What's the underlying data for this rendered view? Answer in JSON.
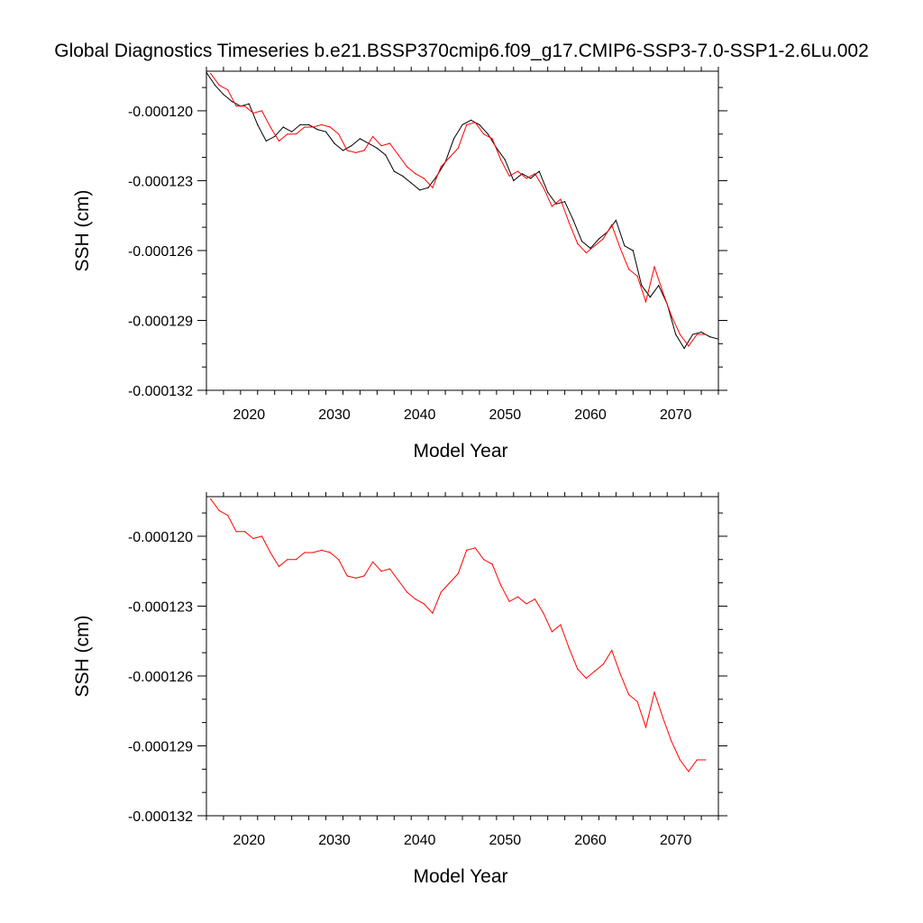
{
  "title": "Global Diagnostics Timeseries b.e21.BSSP370cmip6.f09_g17.CMIP6-SSP3-7.0-SSP1-2.6Lu.002",
  "colors": {
    "monthly": "#000000",
    "annual": "#ff0000",
    "axes": "#000000",
    "background": "#ffffff"
  },
  "chart_data": [
    {
      "type": "line",
      "title": "",
      "xlabel": "Model Year",
      "ylabel": "SSH (cm)",
      "xlim": [
        2015,
        2075
      ],
      "ylim": [
        -0.000132,
        -0.0001183
      ],
      "x_ticks": [
        2020,
        2030,
        2040,
        2050,
        2060,
        2070
      ],
      "x_tick_labels": [
        "2020",
        "2030",
        "2040",
        "2050",
        "2060",
        "2070"
      ],
      "y_ticks": [
        -0.000132,
        -0.000129,
        -0.000126,
        -0.000123,
        -0.00012
      ],
      "y_tick_labels": [
        "-0.000132",
        "-0.000129",
        "-0.000126",
        "-0.000123",
        "-0.000120"
      ],
      "grid": false,
      "legend": "none",
      "series": [
        {
          "style": "monthly (black)",
          "x": [
            2015.0,
            2016.0,
            2017.0,
            2018.0,
            2019.0,
            2020.0,
            2021.0,
            2022.0,
            2023.0,
            2024.0,
            2025.0,
            2026.0,
            2027.0,
            2028.0,
            2029.0,
            2030.0,
            2031.0,
            2032.0,
            2033.0,
            2034.0,
            2035.0,
            2036.0,
            2037.0,
            2038.0,
            2039.0,
            2040.0,
            2041.0,
            2042.0,
            2043.0,
            2044.0,
            2045.0,
            2046.0,
            2047.0,
            2048.0,
            2049.0,
            2050.0,
            2051.0,
            2052.0,
            2053.0,
            2054.0,
            2055.0,
            2056.0,
            2057.0,
            2058.0,
            2059.0,
            2060.0,
            2061.0,
            2062.0,
            2063.0,
            2064.0,
            2065.0,
            2066.0,
            2067.0,
            2068.0,
            2069.0,
            2070.0,
            2071.0,
            2072.0,
            2073.0,
            2074.0,
            2075.0
          ],
          "values": [
            -0.00011835,
            -0.0001189,
            -0.0001193,
            -0.0001196,
            -0.0001198,
            -0.0001197,
            -0.0001206,
            -0.0001213,
            -0.0001211,
            -0.0001207,
            -0.0001209,
            -0.0001206,
            -0.0001206,
            -0.0001208,
            -0.0001209,
            -0.0001214,
            -0.0001217,
            -0.0001215,
            -0.0001212,
            -0.0001214,
            -0.0001216,
            -0.0001219,
            -0.0001226,
            -0.0001228,
            -0.0001231,
            -0.0001234,
            -0.0001233,
            -0.0001228,
            -0.0001222,
            -0.0001212,
            -0.0001206,
            -0.0001204,
            -0.0001206,
            -0.000121,
            -0.0001216,
            -0.0001221,
            -0.000123,
            -0.0001227,
            -0.0001229,
            -0.0001226,
            -0.0001235,
            -0.000124,
            -0.0001239,
            -0.0001247,
            -0.0001256,
            -0.0001259,
            -0.0001255,
            -0.0001252,
            -0.0001247,
            -0.0001258,
            -0.000126,
            -0.0001275,
            -0.000128,
            -0.0001275,
            -0.0001283,
            -0.0001296,
            -0.0001302,
            -0.0001296,
            -0.0001295,
            -0.0001297,
            -0.0001298
          ]
        },
        {
          "style": "annual mean (red)",
          "x": [
            2015.5,
            2016.5,
            2017.5,
            2018.5,
            2019.5,
            2020.5,
            2021.5,
            2022.5,
            2023.5,
            2024.5,
            2025.5,
            2026.5,
            2027.5,
            2028.5,
            2029.5,
            2030.5,
            2031.5,
            2032.5,
            2033.5,
            2034.5,
            2035.5,
            2036.5,
            2037.5,
            2038.5,
            2039.5,
            2040.5,
            2041.5,
            2042.5,
            2043.5,
            2044.5,
            2045.5,
            2046.5,
            2047.5,
            2048.5,
            2049.5,
            2050.5,
            2051.5,
            2052.5,
            2053.5,
            2054.5,
            2055.5,
            2056.5,
            2057.5,
            2058.5,
            2059.5,
            2060.5,
            2061.5,
            2062.5,
            2063.5,
            2064.5,
            2065.5,
            2066.5,
            2067.5,
            2068.5,
            2069.5,
            2070.5,
            2071.5,
            2072.5,
            2073.5
          ],
          "values": [
            -0.0001184,
            -0.0001189,
            -0.0001191,
            -0.0001198,
            -0.0001198,
            -0.0001201,
            -0.00012,
            -0.0001207,
            -0.0001213,
            -0.000121,
            -0.000121,
            -0.0001207,
            -0.0001207,
            -0.0001206,
            -0.0001207,
            -0.000121,
            -0.0001217,
            -0.0001218,
            -0.0001217,
            -0.0001211,
            -0.0001215,
            -0.0001214,
            -0.0001219,
            -0.0001224,
            -0.0001227,
            -0.0001229,
            -0.0001233,
            -0.0001224,
            -0.000122,
            -0.0001216,
            -0.0001206,
            -0.0001205,
            -0.000121,
            -0.0001212,
            -0.0001221,
            -0.0001228,
            -0.0001226,
            -0.0001229,
            -0.0001227,
            -0.0001233,
            -0.0001241,
            -0.0001238,
            -0.0001248,
            -0.0001257,
            -0.0001261,
            -0.0001258,
            -0.0001255,
            -0.0001249,
            -0.0001259,
            -0.0001268,
            -0.0001271,
            -0.0001282,
            -0.0001267,
            -0.0001278,
            -0.0001288,
            -0.0001296,
            -0.0001301,
            -0.0001296,
            -0.0001296
          ]
        }
      ]
    },
    {
      "type": "line",
      "title": "",
      "xlabel": "Model Year",
      "ylabel": "SSH (cm)",
      "xlim": [
        2015,
        2075
      ],
      "ylim": [
        -0.000132,
        -0.0001183
      ],
      "x_ticks": [
        2020,
        2030,
        2040,
        2050,
        2060,
        2070
      ],
      "x_tick_labels": [
        "2020",
        "2030",
        "2040",
        "2050",
        "2060",
        "2070"
      ],
      "y_ticks": [
        -0.000132,
        -0.000129,
        -0.000126,
        -0.000123,
        -0.00012
      ],
      "y_tick_labels": [
        "-0.000132",
        "-0.000129",
        "-0.000126",
        "-0.000123",
        "-0.000120"
      ],
      "grid": false,
      "legend": "none",
      "series": [
        {
          "style": "annual mean (red)",
          "x": [
            2015.5,
            2016.5,
            2017.5,
            2018.5,
            2019.5,
            2020.5,
            2021.5,
            2022.5,
            2023.5,
            2024.5,
            2025.5,
            2026.5,
            2027.5,
            2028.5,
            2029.5,
            2030.5,
            2031.5,
            2032.5,
            2033.5,
            2034.5,
            2035.5,
            2036.5,
            2037.5,
            2038.5,
            2039.5,
            2040.5,
            2041.5,
            2042.5,
            2043.5,
            2044.5,
            2045.5,
            2046.5,
            2047.5,
            2048.5,
            2049.5,
            2050.5,
            2051.5,
            2052.5,
            2053.5,
            2054.5,
            2055.5,
            2056.5,
            2057.5,
            2058.5,
            2059.5,
            2060.5,
            2061.5,
            2062.5,
            2063.5,
            2064.5,
            2065.5,
            2066.5,
            2067.5,
            2068.5,
            2069.5,
            2070.5,
            2071.5,
            2072.5,
            2073.5
          ],
          "values": [
            -0.0001184,
            -0.0001189,
            -0.0001191,
            -0.0001198,
            -0.0001198,
            -0.0001201,
            -0.00012,
            -0.0001207,
            -0.0001213,
            -0.000121,
            -0.000121,
            -0.0001207,
            -0.0001207,
            -0.0001206,
            -0.0001207,
            -0.000121,
            -0.0001217,
            -0.0001218,
            -0.0001217,
            -0.0001211,
            -0.0001215,
            -0.0001214,
            -0.0001219,
            -0.0001224,
            -0.0001227,
            -0.0001229,
            -0.0001233,
            -0.0001224,
            -0.000122,
            -0.0001216,
            -0.0001206,
            -0.0001205,
            -0.000121,
            -0.0001212,
            -0.0001221,
            -0.0001228,
            -0.0001226,
            -0.0001229,
            -0.0001227,
            -0.0001233,
            -0.0001241,
            -0.0001238,
            -0.0001248,
            -0.0001257,
            -0.0001261,
            -0.0001258,
            -0.0001255,
            -0.0001249,
            -0.0001259,
            -0.0001268,
            -0.0001271,
            -0.0001282,
            -0.0001267,
            -0.0001278,
            -0.0001288,
            -0.0001296,
            -0.0001301,
            -0.0001296,
            -0.0001296
          ]
        }
      ]
    }
  ]
}
